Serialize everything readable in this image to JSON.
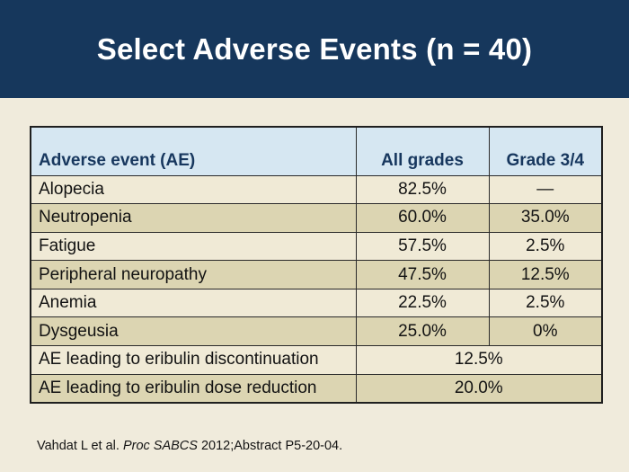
{
  "slide": {
    "title": "Select Adverse Events (n = 40)",
    "citation": {
      "prefix": "Vahdat L et al. ",
      "source_italic": "Proc SABCS",
      "suffix": " 2012;Abstract P5-20-04."
    }
  },
  "table": {
    "headers": {
      "event": "Adverse event (AE)",
      "all_grades": "All grades",
      "grade_3_4": "Grade 3/4"
    },
    "rows": [
      {
        "event": "Alopecia",
        "all_grades": "82.5%",
        "grade_3_4": "—"
      },
      {
        "event": "Neutropenia",
        "all_grades": "60.0%",
        "grade_3_4": "35.0%"
      },
      {
        "event": "Fatigue",
        "all_grades": "57.5%",
        "grade_3_4": "2.5%"
      },
      {
        "event": "Peripheral neuropathy",
        "all_grades": "47.5%",
        "grade_3_4": "12.5%"
      },
      {
        "event": "Anemia",
        "all_grades": "22.5%",
        "grade_3_4": "2.5%"
      },
      {
        "event": "Dysgeusia",
        "all_grades": "25.0%",
        "grade_3_4": "0%"
      }
    ],
    "span_rows": [
      {
        "event": "AE leading to eribulin discontinuation",
        "value": "12.5%"
      },
      {
        "event": "AE leading to eribulin dose reduction",
        "value": "20.0%"
      }
    ]
  },
  "chart_data": {
    "type": "table",
    "title": "Select Adverse Events (n = 40)",
    "n": 40,
    "columns": [
      "Adverse event (AE)",
      "All grades",
      "Grade 3/4"
    ],
    "rows": [
      [
        "Alopecia",
        "82.5%",
        "—"
      ],
      [
        "Neutropenia",
        "60.0%",
        "35.0%"
      ],
      [
        "Fatigue",
        "57.5%",
        "2.5%"
      ],
      [
        "Peripheral neuropathy",
        "47.5%",
        "12.5%"
      ],
      [
        "Anemia",
        "22.5%",
        "2.5%"
      ],
      [
        "Dysgeusia",
        "25.0%",
        "0%"
      ],
      [
        "AE leading to eribulin discontinuation",
        "12.5%",
        ""
      ],
      [
        "AE leading to eribulin dose reduction",
        "20.0%",
        ""
      ]
    ]
  },
  "colors": {
    "header_band": "#16375C",
    "title_text": "#FFFFFF",
    "slide_background": "#F0EBDC",
    "table_header_bg": "#D6E7F2",
    "table_header_text": "#17375E",
    "row_light": "#F0EAD6",
    "row_tan": "#DCD5B2",
    "border": "#1F1F1F",
    "body_text": "#121212"
  }
}
